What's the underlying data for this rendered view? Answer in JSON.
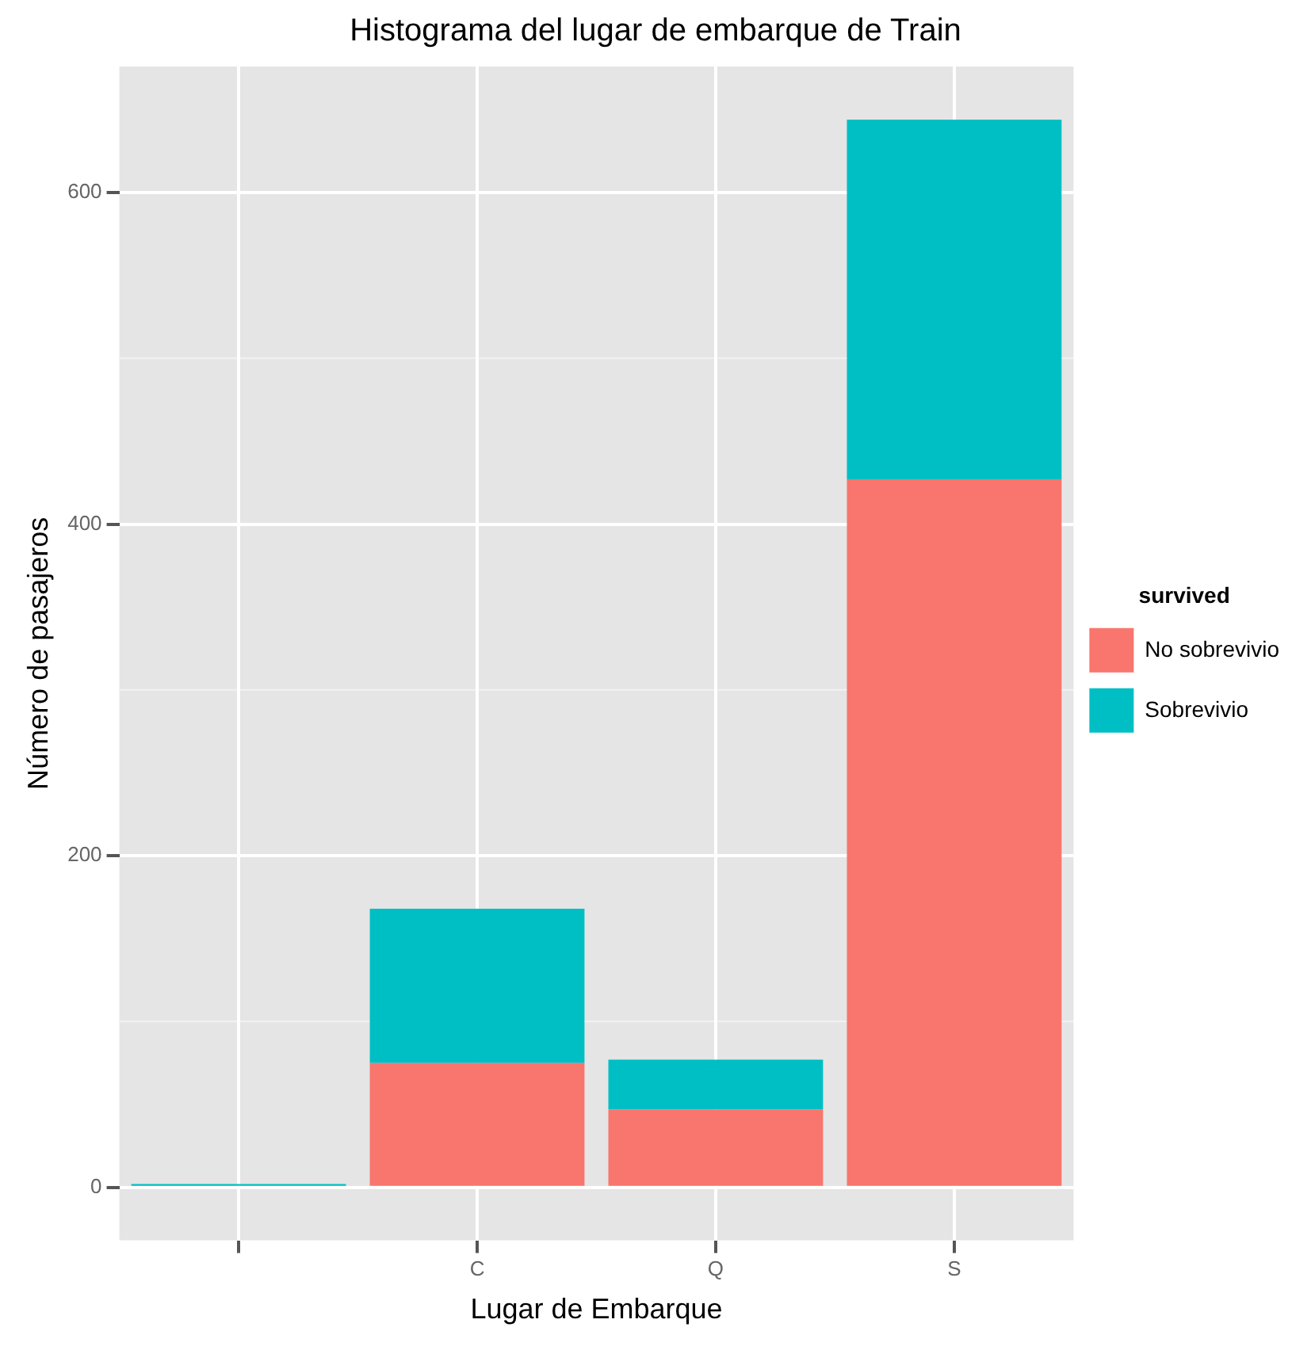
{
  "chart_data": {
    "type": "bar",
    "title": "Histograma del lugar de embarque de Train",
    "xlabel": "Lugar de Embarque",
    "ylabel": "Número de pasajeros",
    "legend_title": "survived",
    "categories": [
      null,
      "C",
      "Q",
      "S"
    ],
    "series": [
      {
        "name": "No sobrevivio",
        "color": "#f8766d",
        "values": [
          0,
          75,
          47,
          427
        ]
      },
      {
        "name": "Sobrevivio",
        "color": "#00bfc4",
        "values": [
          2,
          93,
          30,
          217
        ]
      }
    ],
    "stacked": true,
    "ylim": [
      -32,
      676
    ],
    "yticks": [
      0,
      200,
      400,
      600
    ],
    "grid": true,
    "legend": "right"
  }
}
